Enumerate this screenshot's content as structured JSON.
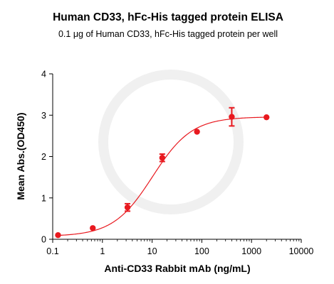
{
  "chart_data": {
    "type": "scatter",
    "title": "Human CD33, hFc-His tagged protein ELISA",
    "subtitle_prefix": "0.1 ",
    "subtitle_unit": "μg",
    "subtitle_suffix": " of Human CD33, hFc-His tagged protein per well",
    "xlabel": "Anti-CD33 Rabbit mAb (ng/mL)",
    "ylabel": "Mean Abs.(OD450)",
    "xscale": "log",
    "xlim": [
      0.1,
      10000
    ],
    "ylim": [
      0,
      4
    ],
    "xticks": [
      "0.1",
      "1",
      "10",
      "100",
      "1000",
      "10000"
    ],
    "yticks": [
      "0",
      "1",
      "2",
      "3",
      "4"
    ],
    "grid": false,
    "legend": "none",
    "color": "#e8191f",
    "points": [
      {
        "x": 0.128,
        "y": 0.1,
        "err": 0.0
      },
      {
        "x": 0.64,
        "y": 0.27,
        "err": 0.0
      },
      {
        "x": 3.2,
        "y": 0.77,
        "err": 0.09
      },
      {
        "x": 16,
        "y": 1.97,
        "err": 0.09
      },
      {
        "x": 80,
        "y": 2.6,
        "err": 0.0
      },
      {
        "x": 400,
        "y": 2.96,
        "err": 0.22
      },
      {
        "x": 2000,
        "y": 2.95,
        "err": 0.0
      }
    ],
    "fit": {
      "model": "4PL",
      "bottom": 0.07,
      "top": 2.96,
      "ec50": 10.2,
      "hill": 1.1
    }
  }
}
